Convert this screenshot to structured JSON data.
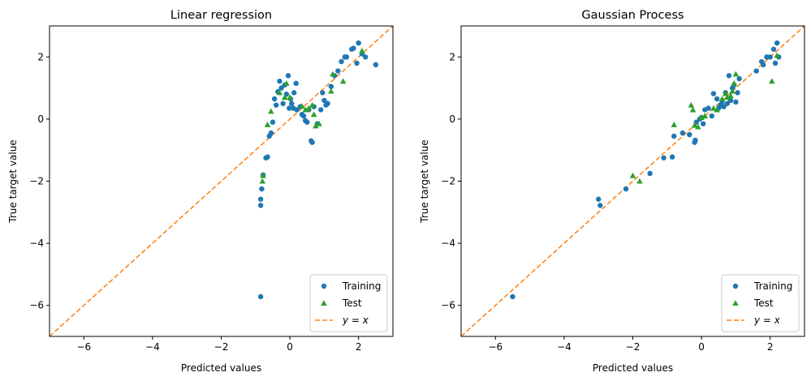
{
  "colors": {
    "training": "#1f77b4",
    "test": "#2ca02c",
    "identity": "#ff7f0e"
  },
  "chart_data": [
    {
      "type": "scatter",
      "title": "Linear regression",
      "xlabel": "Predicted values",
      "ylabel": "True target value",
      "xlim": [
        -7,
        3
      ],
      "ylim": [
        -7,
        3
      ],
      "xticks": [
        -6,
        -4,
        -2,
        0,
        2
      ],
      "yticks": [
        -6,
        -4,
        -2,
        0,
        2
      ],
      "xtick_labels": [
        "−6",
        "−4",
        "−2",
        "0",
        "2"
      ],
      "ytick_labels": [
        "−6",
        "−4",
        "−2",
        "0",
        "2"
      ],
      "grid": false,
      "legend_position": "bottom-right",
      "identity_line": {
        "label": "y = x",
        "style": "dashed",
        "color": "#ff7f0e"
      },
      "series": [
        {
          "name": "Training",
          "marker": "circle",
          "color": "#1f77b4",
          "points": [
            [
              -0.85,
              -5.72
            ],
            [
              -0.85,
              -2.78
            ],
            [
              -0.85,
              -2.58
            ],
            [
              -0.82,
              -2.25
            ],
            [
              -0.78,
              -1.8
            ],
            [
              -0.7,
              -1.25
            ],
            [
              -0.65,
              -1.22
            ],
            [
              -0.6,
              -0.55
            ],
            [
              -0.55,
              -0.45
            ],
            [
              -0.5,
              -0.1
            ],
            [
              -0.45,
              0.65
            ],
            [
              -0.4,
              0.45
            ],
            [
              -0.35,
              0.88
            ],
            [
              -0.3,
              1.22
            ],
            [
              -0.25,
              1.0
            ],
            [
              -0.2,
              0.5
            ],
            [
              -0.15,
              1.1
            ],
            [
              -0.1,
              0.8
            ],
            [
              -0.05,
              1.4
            ],
            [
              -0.02,
              0.35
            ],
            [
              0.02,
              0.65
            ],
            [
              0.05,
              0.5
            ],
            [
              0.1,
              0.35
            ],
            [
              0.12,
              0.85
            ],
            [
              0.18,
              1.15
            ],
            [
              0.2,
              0.3
            ],
            [
              0.3,
              0.4
            ],
            [
              0.35,
              0.15
            ],
            [
              0.4,
              0.1
            ],
            [
              0.45,
              -0.05
            ],
            [
              0.5,
              -0.1
            ],
            [
              0.55,
              0.3
            ],
            [
              0.62,
              -0.7
            ],
            [
              0.65,
              -0.75
            ],
            [
              0.7,
              0.4
            ],
            [
              0.8,
              -0.15
            ],
            [
              0.9,
              0.3
            ],
            [
              0.95,
              0.85
            ],
            [
              1.0,
              0.6
            ],
            [
              1.05,
              0.45
            ],
            [
              1.1,
              0.5
            ],
            [
              1.2,
              1.05
            ],
            [
              1.3,
              1.4
            ],
            [
              1.4,
              1.55
            ],
            [
              1.5,
              1.85
            ],
            [
              1.6,
              2.0
            ],
            [
              1.65,
              2.0
            ],
            [
              1.8,
              2.25
            ],
            [
              1.85,
              2.28
            ],
            [
              1.95,
              1.8
            ],
            [
              2.0,
              2.45
            ],
            [
              2.1,
              2.1
            ],
            [
              2.2,
              2.0
            ],
            [
              2.5,
              1.75
            ]
          ]
        },
        {
          "name": "Test",
          "marker": "triangle",
          "color": "#2ca02c",
          "points": [
            [
              -0.8,
              -2.0
            ],
            [
              -0.78,
              -1.82
            ],
            [
              -0.65,
              -0.18
            ],
            [
              -0.55,
              0.25
            ],
            [
              -0.3,
              0.85
            ],
            [
              -0.15,
              0.7
            ],
            [
              -0.1,
              1.15
            ],
            [
              0.0,
              0.7
            ],
            [
              0.35,
              0.42
            ],
            [
              0.45,
              0.3
            ],
            [
              0.55,
              0.35
            ],
            [
              0.65,
              0.45
            ],
            [
              0.7,
              0.15
            ],
            [
              0.75,
              -0.22
            ],
            [
              0.85,
              -0.15
            ],
            [
              1.2,
              0.9
            ],
            [
              1.25,
              1.45
            ],
            [
              1.55,
              1.22
            ],
            [
              2.1,
              2.2
            ]
          ]
        }
      ]
    },
    {
      "type": "scatter",
      "title": "Gaussian Process",
      "xlabel": "Predicted values",
      "ylabel": "True target value",
      "xlim": [
        -7,
        3
      ],
      "ylim": [
        -7,
        3
      ],
      "xticks": [
        -6,
        -4,
        -2,
        0,
        2
      ],
      "yticks": [
        -6,
        -4,
        -2,
        0,
        2
      ],
      "xtick_labels": [
        "−6",
        "−4",
        "−2",
        "0",
        "2"
      ],
      "ytick_labels": [
        "−6",
        "−4",
        "−2",
        "0",
        "2"
      ],
      "grid": false,
      "legend_position": "bottom-right",
      "identity_line": {
        "label": "y = x",
        "style": "dashed",
        "color": "#ff7f0e"
      },
      "series": [
        {
          "name": "Training",
          "marker": "circle",
          "color": "#1f77b4",
          "points": [
            [
              -5.5,
              -5.72
            ],
            [
              -3.0,
              -2.58
            ],
            [
              -2.95,
              -2.78
            ],
            [
              -2.2,
              -2.25
            ],
            [
              -1.5,
              -1.75
            ],
            [
              -1.1,
              -1.25
            ],
            [
              -0.85,
              -1.22
            ],
            [
              -0.8,
              -0.55
            ],
            [
              -0.55,
              -0.45
            ],
            [
              -0.35,
              -0.5
            ],
            [
              -0.2,
              -0.75
            ],
            [
              -0.18,
              -0.68
            ],
            [
              -0.15,
              -0.1
            ],
            [
              -0.05,
              0.0
            ],
            [
              0.0,
              0.05
            ],
            [
              0.05,
              -0.15
            ],
            [
              0.1,
              0.3
            ],
            [
              0.2,
              0.35
            ],
            [
              0.3,
              0.1
            ],
            [
              0.35,
              0.82
            ],
            [
              0.45,
              0.65
            ],
            [
              0.5,
              0.35
            ],
            [
              0.55,
              0.45
            ],
            [
              0.6,
              0.55
            ],
            [
              0.65,
              0.4
            ],
            [
              0.7,
              0.85
            ],
            [
              0.75,
              0.5
            ],
            [
              0.8,
              1.4
            ],
            [
              0.85,
              0.6
            ],
            [
              0.9,
              1.0
            ],
            [
              0.95,
              1.1
            ],
            [
              1.0,
              0.55
            ],
            [
              1.05,
              0.85
            ],
            [
              1.1,
              1.3
            ],
            [
              1.6,
              1.55
            ],
            [
              1.75,
              1.85
            ],
            [
              1.8,
              1.75
            ],
            [
              1.9,
              2.0
            ],
            [
              2.0,
              2.0
            ],
            [
              2.1,
              2.25
            ],
            [
              2.15,
              1.8
            ],
            [
              2.2,
              2.45
            ],
            [
              2.25,
              2.0
            ]
          ]
        },
        {
          "name": "Test",
          "marker": "triangle",
          "color": "#2ca02c",
          "points": [
            [
              -2.0,
              -1.82
            ],
            [
              -1.8,
              -2.0
            ],
            [
              -0.8,
              -0.18
            ],
            [
              -0.3,
              0.45
            ],
            [
              -0.25,
              0.3
            ],
            [
              -0.2,
              -0.2
            ],
            [
              -0.1,
              -0.25
            ],
            [
              0.0,
              0.05
            ],
            [
              0.1,
              0.1
            ],
            [
              0.35,
              0.35
            ],
            [
              0.45,
              0.3
            ],
            [
              0.6,
              0.65
            ],
            [
              0.7,
              0.82
            ],
            [
              0.75,
              0.7
            ],
            [
              0.85,
              0.75
            ],
            [
              0.9,
              0.9
            ],
            [
              0.95,
              1.15
            ],
            [
              1.0,
              1.45
            ],
            [
              2.05,
              1.22
            ],
            [
              2.2,
              2.05
            ]
          ]
        }
      ]
    }
  ]
}
